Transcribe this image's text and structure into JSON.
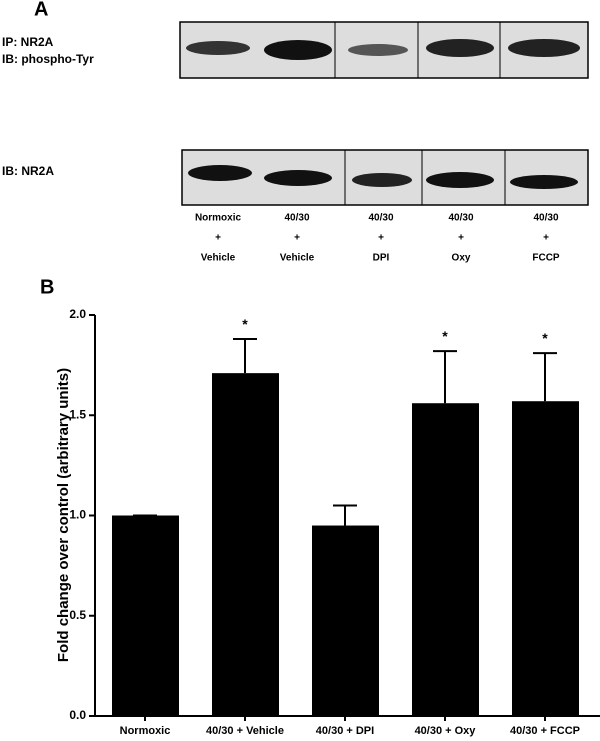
{
  "panel_a": {
    "label": "A",
    "ip_label": "IP: NR2A",
    "ib_top_label": "IB: phospho-Tyr",
    "ib_bottom_label": "IB: NR2A",
    "lanes": [
      [
        "Normoxic",
        "+",
        "Vehicle"
      ],
      [
        "40/30",
        "+",
        "Vehicle"
      ],
      [
        "40/30",
        "+",
        "DPI"
      ],
      [
        "40/30",
        "+",
        "Oxy"
      ],
      [
        "40/30",
        "+",
        "FCCP"
      ]
    ]
  },
  "chart_data": {
    "type": "bar",
    "panel_label": "B",
    "y_label": "Fold change over control (arbitrary units)",
    "categories": [
      "Normoxic",
      "40/30 + Vehicle",
      "40/30 + DPI",
      "40/30 + Oxy",
      "40/30 + FCCP"
    ],
    "values": [
      1.0,
      1.71,
      0.95,
      1.56,
      1.57
    ],
    "errors": [
      0,
      0.17,
      0.1,
      0.26,
      0.24
    ],
    "significance_labels": [
      null,
      "*",
      null,
      "*",
      "*"
    ],
    "color": "#000000",
    "ylim": [
      0,
      2.0
    ],
    "yticks": [
      {
        "value": 0,
        "label": "0.0"
      },
      {
        "value": 0.5,
        "label": "0.5"
      },
      {
        "value": 1.0,
        "label": "1.0"
      },
      {
        "value": 1.5,
        "label": "1.5"
      },
      {
        "value": 2.0,
        "label": "2.0"
      }
    ]
  }
}
